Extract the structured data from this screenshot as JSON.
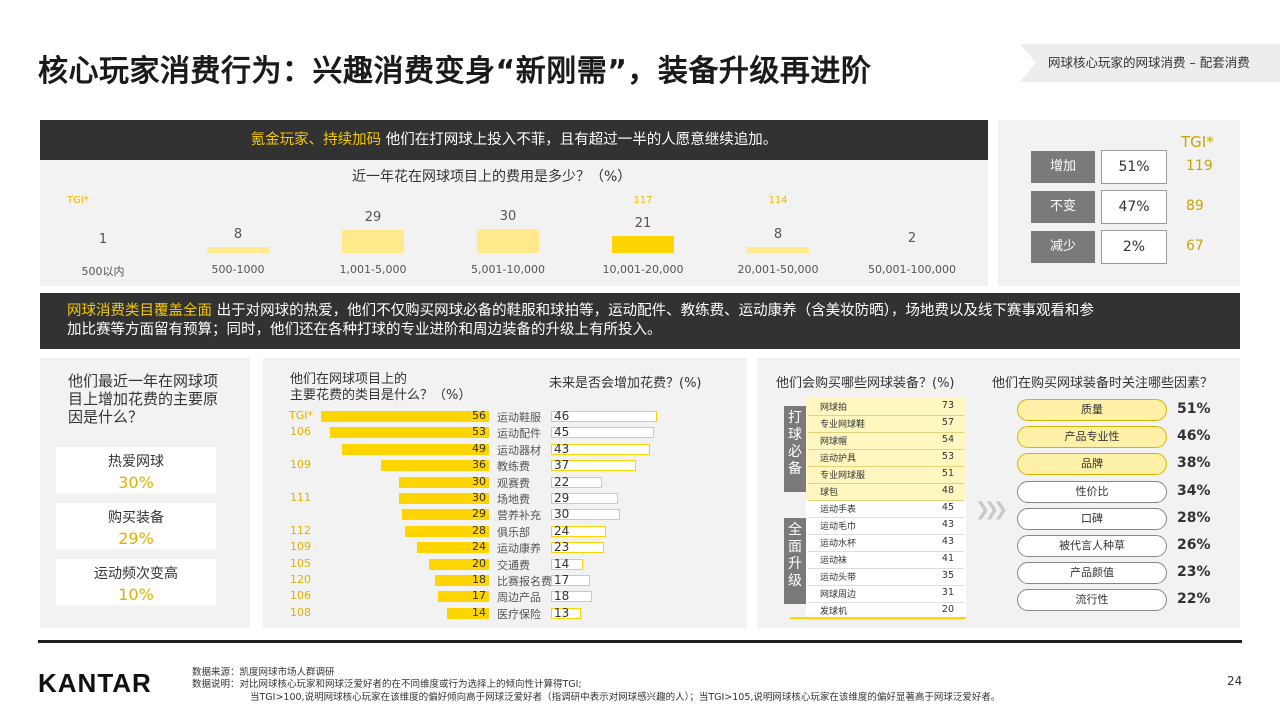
{
  "title": "核心玩家消费行为：兴趣消费变身“新刚需”，装备升级再进阶",
  "tag": "网球核心玩家的网球消费 – 配套消费",
  "banner1": {
    "highlight": "氪金玩家、持续加码",
    "text": " 他们在打网球上投入不菲，且有超过一半的人愿意继续追加。"
  },
  "spend_chart": {
    "question": "近一年花在网球项目上的费用是多少？（%）",
    "tgi_label": "TGI*",
    "categories": [
      "500以内",
      "500-1000",
      "1,001-5,000",
      "5,001-10,000",
      "10,001-20,000",
      "20,001-50,000",
      "50,001-100,000"
    ],
    "values": [
      "1",
      "8",
      "29",
      "30",
      "21",
      "8",
      "2"
    ],
    "tgi": [
      "",
      "",
      "",
      "",
      "117",
      "114",
      ""
    ]
  },
  "trend": {
    "tgi_header": "TGI*",
    "rows": [
      {
        "label": "增加",
        "value": "51%",
        "tgi": "119"
      },
      {
        "label": "不变",
        "value": "47%",
        "tgi": "89"
      },
      {
        "label": "减少",
        "value": "2%",
        "tgi": "67"
      }
    ]
  },
  "banner2": {
    "highlight": "网球消费类目覆盖全面",
    "line1": " 出于对网球的热爱，他们不仅购买网球必备的鞋服和球拍等，运动配件、教练费、运动康养（含美妆防晒），场地费以及线下赛事观看和参",
    "line2": "加比赛等方面留有预算；同时，他们还在各种打球的专业进阶和周边装备的升级上有所投入。"
  },
  "reasons": {
    "question_l1": "他们最近一年在网球项",
    "question_l2": "目上增加花费的主要原",
    "question_l3": "因是什么？",
    "items": [
      {
        "label": "热爱网球",
        "value": "30%"
      },
      {
        "label": "购买装备",
        "value": "29%"
      },
      {
        "label": "运动频次变高",
        "value": "10%"
      }
    ]
  },
  "category_chart": {
    "question_l1": "他们在网球项目上的",
    "question_l2": "主要花费的类目是什么？（%）",
    "future_question": "未来是否会增加花费？(%)",
    "tgi_label": "TGI*",
    "rows": [
      {
        "tgi": "",
        "value": "56",
        "label": "运动鞋服",
        "future": "46"
      },
      {
        "tgi": "106",
        "value": "53",
        "label": "运动配件",
        "future": "45"
      },
      {
        "tgi": "",
        "value": "49",
        "label": "运动器材",
        "future": "43"
      },
      {
        "tgi": "109",
        "value": "36",
        "label": "教练费",
        "future": "37"
      },
      {
        "tgi": "",
        "value": "30",
        "label": "观赛费",
        "future": "22"
      },
      {
        "tgi": "111",
        "value": "30",
        "label": "场地费",
        "future": "29"
      },
      {
        "tgi": "",
        "value": "29",
        "label": "营养补充",
        "future": "30"
      },
      {
        "tgi": "112",
        "value": "28",
        "label": "俱乐部",
        "future": "24"
      },
      {
        "tgi": "109",
        "value": "24",
        "label": "运动康养",
        "future": "23"
      },
      {
        "tgi": "105",
        "value": "20",
        "label": "交通费",
        "future": "14"
      },
      {
        "tgi": "120",
        "value": "18",
        "label": "比赛报名费",
        "future": "17"
      },
      {
        "tgi": "106",
        "value": "17",
        "label": "周边产品",
        "future": "18"
      },
      {
        "tgi": "108",
        "value": "14",
        "label": "医疗保险",
        "future": "13"
      }
    ]
  },
  "equipment": {
    "question": "他们会购买哪些网球装备？(%)",
    "group1_label": "打球必备",
    "group2_label": "全面升级",
    "group1": [
      {
        "name": "网球拍",
        "value": "73"
      },
      {
        "name": "专业网球鞋",
        "value": "57"
      },
      {
        "name": "网球帽",
        "value": "54"
      },
      {
        "name": "运动护具",
        "value": "53"
      },
      {
        "name": "专业网球服",
        "value": "51"
      },
      {
        "name": "球包",
        "value": "48"
      }
    ],
    "group2": [
      {
        "name": "运动手表",
        "value": "45"
      },
      {
        "name": "运动毛巾",
        "value": "43"
      },
      {
        "name": "运动水杯",
        "value": "43"
      },
      {
        "name": "运动袜",
        "value": "41"
      },
      {
        "name": "运动头带",
        "value": "35"
      },
      {
        "name": "网球周边",
        "value": "31"
      },
      {
        "name": "发球机",
        "value": "20"
      }
    ]
  },
  "factors": {
    "question": "他们在购买网球装备时关注哪些因素？",
    "items": [
      {
        "label": "质量",
        "value": "51%",
        "highlight": true
      },
      {
        "label": "产品专业性",
        "value": "46%",
        "highlight": true
      },
      {
        "label": "品牌",
        "value": "38%",
        "highlight": true
      },
      {
        "label": "性价比",
        "value": "34%",
        "highlight": false
      },
      {
        "label": "口碑",
        "value": "28%",
        "highlight": false
      },
      {
        "label": "被代言人种草",
        "value": "26%",
        "highlight": false
      },
      {
        "label": "产品颜值",
        "value": "23%",
        "highlight": false
      },
      {
        "label": "流行性",
        "value": "22%",
        "highlight": false
      }
    ]
  },
  "footer": {
    "logo": "KANTAR",
    "source": "数据来源：凯度网球市场人群调研",
    "note1": "数据说明：对比网球核心玩家和网球泛爱好者的在不同维度或行为选择上的倾向性计算得TGI;",
    "note2": "当TGI>100,说明网球核心玩家在该维度的偏好倾向高于网球泛爱好者（指调研中表示对网球感兴趣的人）；当TGI>105,说明网球核心玩家在该维度的偏好显著高于网球泛爱好者。",
    "page": "24"
  },
  "colors": {
    "accent": "#ffd500",
    "pale": "#ffe98a",
    "dark": "#323232",
    "gray": "#7a7a7a"
  }
}
